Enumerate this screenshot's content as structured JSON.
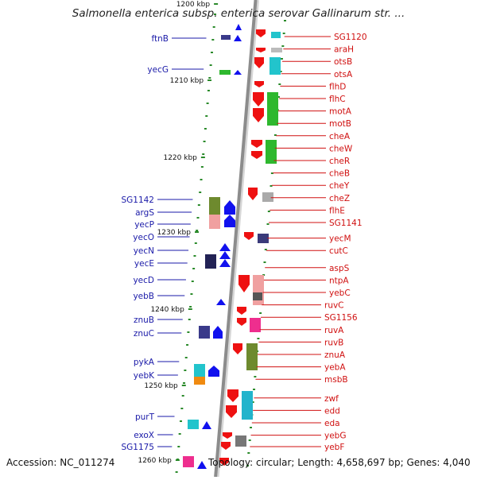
{
  "title": "Salmonella enterica subsp. enterica serovar Gallinarum str. ...",
  "accession": "Accession: NC_011274",
  "summary": "Topology: circular; Length: 4,658,697 bp; Genes: 4,040",
  "scale_ticks": [
    {
      "label": "1200 kbp"
    },
    {
      "label": "1210 kbp"
    },
    {
      "label": "1220 kbp"
    },
    {
      "label": "1230 kbp"
    },
    {
      "label": "1240 kbp"
    },
    {
      "label": "1250 kbp"
    },
    {
      "label": "1260 kbp"
    }
  ],
  "left_genes": [
    "ftnB",
    "yecG",
    "SG1142",
    "argS",
    "yecP",
    "yecO",
    "yecN",
    "yecE",
    "yecD",
    "yebB",
    "znuB",
    "znuC",
    "pykA",
    "yebK",
    "purT",
    "exoX",
    "SG1175"
  ],
  "right_genes": [
    "SG1120",
    "araH",
    "otsB",
    "otsA",
    "flhD",
    "flhC",
    "motA",
    "motB",
    "cheA",
    "cheW",
    "cheR",
    "cheB",
    "cheY",
    "cheZ",
    "flhE",
    "SG1141",
    "yecM",
    "cutC",
    "aspS",
    "ntpA",
    "yebC",
    "ruvC",
    "SG1156",
    "ruvA",
    "ruvB",
    "znuA",
    "yebA",
    "msbB",
    "zwf",
    "edd",
    "eda",
    "yebG",
    "yebF"
  ],
  "colors": {
    "left_label": "#1a1aa8",
    "right_label": "#d01010",
    "axis": "#8c8c8c",
    "tick": "#2a8a2a"
  }
}
